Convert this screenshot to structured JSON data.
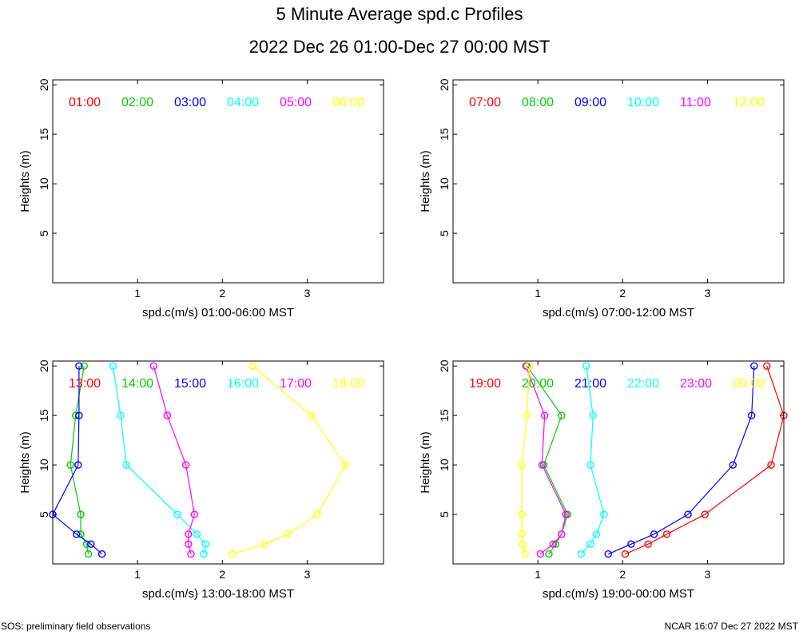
{
  "title": "5 Minute Average spd.c Profiles",
  "subtitle": "2022 Dec 26 01:00-Dec 27 00:00 MST",
  "footer_left": "SOS: preliminary field observations",
  "footer_right": "NCAR 16:07 Dec 27 2022 MST",
  "chart_data": [
    {
      "type": "line",
      "xlabel": "spd.c(m/s) 01:00-06:00 MST",
      "ylabel": "Heights (m)",
      "xlim": [
        0,
        3.9
      ],
      "ylim": [
        0,
        20.5
      ],
      "xticks": [
        1,
        2,
        3
      ],
      "yticks": [
        5,
        10,
        15,
        20
      ],
      "heights": [
        1,
        2,
        3,
        5,
        10,
        15,
        20
      ],
      "series": [
        {
          "name": "01:00",
          "color": "#ff0000",
          "values": []
        },
        {
          "name": "02:00",
          "color": "#00cc00",
          "values": []
        },
        {
          "name": "03:00",
          "color": "#0000ff",
          "values": []
        },
        {
          "name": "04:00",
          "color": "#00ffff",
          "values": []
        },
        {
          "name": "05:00",
          "color": "#ff00ff",
          "values": []
        },
        {
          "name": "06:00",
          "color": "#ffff00",
          "values": []
        }
      ]
    },
    {
      "type": "line",
      "xlabel": "spd.c(m/s) 07:00-12:00 MST",
      "ylabel": "Heights (m)",
      "xlim": [
        0,
        3.9
      ],
      "ylim": [
        0,
        20.5
      ],
      "xticks": [
        1,
        2,
        3
      ],
      "yticks": [
        5,
        10,
        15,
        20
      ],
      "heights": [
        1,
        2,
        3,
        5,
        10,
        15,
        20
      ],
      "series": [
        {
          "name": "07:00",
          "color": "#ff0000",
          "values": []
        },
        {
          "name": "08:00",
          "color": "#00cc00",
          "values": []
        },
        {
          "name": "09:00",
          "color": "#0000ff",
          "values": []
        },
        {
          "name": "10:00",
          "color": "#00ffff",
          "values": []
        },
        {
          "name": "11:00",
          "color": "#ff00ff",
          "values": []
        },
        {
          "name": "12:00",
          "color": "#ffff00",
          "values": []
        }
      ]
    },
    {
      "type": "line",
      "xlabel": "spd.c(m/s) 13:00-18:00 MST",
      "ylabel": "Heights (m)",
      "xlim": [
        0,
        3.9
      ],
      "ylim": [
        0,
        20.5
      ],
      "xticks": [
        1,
        2,
        3
      ],
      "yticks": [
        5,
        10,
        15,
        20
      ],
      "heights": [
        1,
        2,
        3,
        5,
        10,
        15,
        20
      ],
      "series": [
        {
          "name": "13:00",
          "color": "#ff0000",
          "values": []
        },
        {
          "name": "14:00",
          "color": "#00cc00",
          "values": [
            0.42,
            0.4,
            0.33,
            0.33,
            0.21,
            0.27,
            0.37
          ]
        },
        {
          "name": "15:00",
          "color": "#0000ff",
          "values": [
            0.58,
            0.45,
            0.28,
            0.0,
            0.3,
            0.31,
            0.31
          ]
        },
        {
          "name": "16:00",
          "color": "#00ffff",
          "values": [
            1.78,
            1.8,
            1.7,
            1.47,
            0.87,
            0.8,
            0.71
          ]
        },
        {
          "name": "17:00",
          "color": "#ff00ff",
          "values": [
            1.63,
            1.6,
            1.6,
            1.67,
            1.57,
            1.35,
            1.19
          ]
        },
        {
          "name": "18:00",
          "color": "#ffff00",
          "values": [
            2.12,
            2.5,
            2.77,
            3.12,
            3.45,
            3.05,
            2.36
          ]
        }
      ]
    },
    {
      "type": "line",
      "xlabel": "spd.c(m/s) 19:00-00:00 MST",
      "ylabel": "Heights (m)",
      "xlim": [
        0,
        3.9
      ],
      "ylim": [
        0,
        20.5
      ],
      "xticks": [
        1,
        2,
        3
      ],
      "yticks": [
        5,
        10,
        15,
        20
      ],
      "heights": [
        1,
        2,
        3,
        5,
        10,
        15,
        20
      ],
      "series": [
        {
          "name": "19:00",
          "color": "#ff0000",
          "values": [
            2.03,
            2.3,
            2.52,
            2.97,
            3.75,
            3.9,
            3.7
          ]
        },
        {
          "name": "20:00",
          "color": "#00cc00",
          "values": [
            1.13,
            1.21,
            1.28,
            1.35,
            1.07,
            1.28,
            0.87
          ]
        },
        {
          "name": "21:00",
          "color": "#0000ff",
          "values": [
            1.83,
            2.1,
            2.37,
            2.77,
            3.3,
            3.52,
            3.55
          ]
        },
        {
          "name": "22:00",
          "color": "#00ffff",
          "values": [
            1.51,
            1.62,
            1.69,
            1.78,
            1.62,
            1.65,
            1.57
          ]
        },
        {
          "name": "23:00",
          "color": "#ff00ff",
          "values": [
            1.03,
            1.18,
            1.28,
            1.33,
            1.05,
            1.08,
            0.86
          ]
        },
        {
          "name": "00:00",
          "color": "#ffff00",
          "values": [
            0.85,
            0.82,
            0.81,
            0.81,
            0.81,
            0.87,
            0.9
          ]
        }
      ]
    }
  ]
}
